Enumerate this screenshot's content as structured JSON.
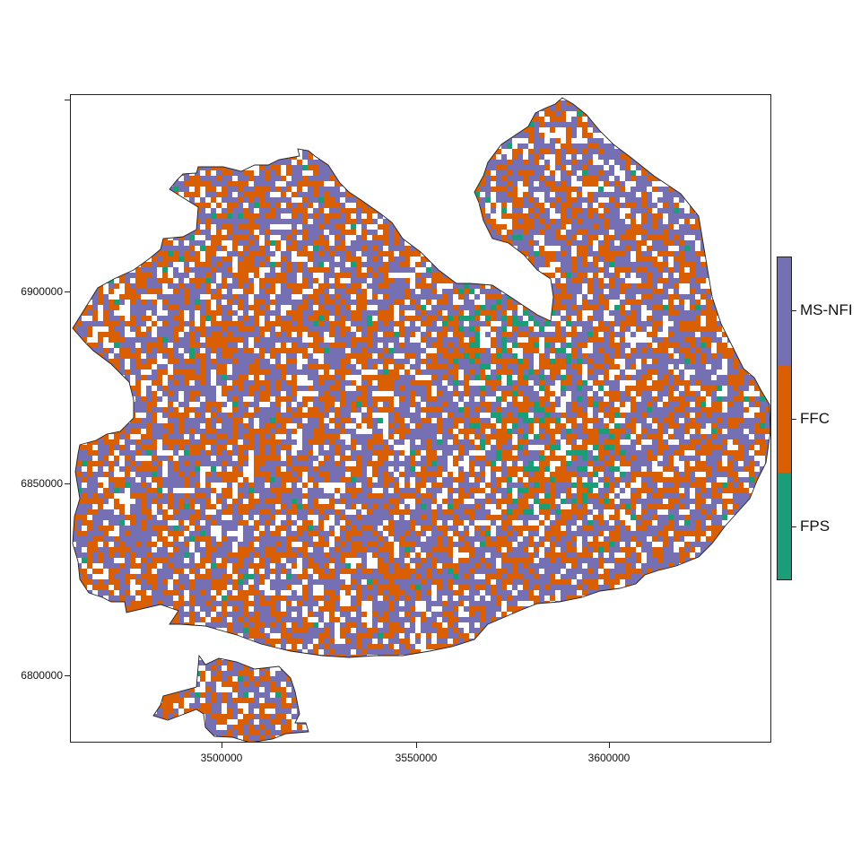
{
  "map": {
    "axes": {
      "x_ticks": [
        "3500000",
        "3550000",
        "3600000"
      ],
      "y_ticks": [
        "6900000",
        "6850000",
        "6800000"
      ]
    },
    "colors": {
      "MS-NFI": "#7570b3",
      "FFC": "#d95f02",
      "FPS": "#1b9e77",
      "background": "#ffffff",
      "outline": "#222222"
    },
    "legend": {
      "items": [
        {
          "label": "MS-NFI",
          "color": "#7570b3"
        },
        {
          "label": "FFC",
          "color": "#d95f02"
        },
        {
          "label": "FPS",
          "color": "#1b9e77"
        }
      ]
    }
  }
}
